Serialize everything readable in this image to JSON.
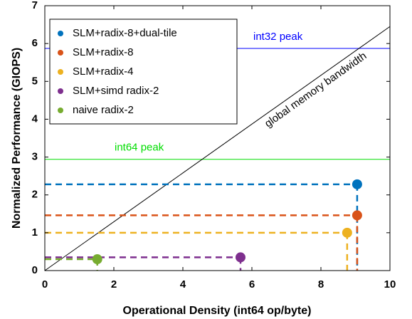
{
  "chart_data": {
    "type": "roofline",
    "x_label": "Operational Density (int64 op/byte)",
    "y_label": "Normalized Performance (GIOPS)",
    "xlim": [
      0,
      10
    ],
    "ylim": [
      0,
      7
    ],
    "xticks": [
      0,
      2,
      4,
      6,
      8,
      10
    ],
    "yticks": [
      0,
      1,
      2,
      3,
      4,
      5,
      6,
      7
    ],
    "legend": "upper left",
    "series": [
      {
        "name": "SLM+radix-8+dual-tile",
        "color": "#0072bd",
        "x": [
          9.05
        ],
        "values": [
          2.28
        ]
      },
      {
        "name": "SLM+radix-8",
        "color": "#d95319",
        "x": [
          9.05
        ],
        "values": [
          1.46
        ]
      },
      {
        "name": "SLM+radix-4",
        "color": "#edb120",
        "x": [
          8.76
        ],
        "values": [
          1.0
        ]
      },
      {
        "name": "SLM+simd radix-2",
        "color": "#7e2f8e",
        "x": [
          5.67
        ],
        "values": [
          0.35
        ]
      },
      {
        "name": "naive radix-2",
        "color": "#77ac30",
        "x": [
          1.52
        ],
        "values": [
          0.3
        ]
      }
    ],
    "peaks": [
      {
        "label": "int32 peak",
        "color": "#0000ff",
        "value": 5.87
      },
      {
        "label": "int64 peak",
        "color": "#00dd00",
        "value": 2.94
      }
    ],
    "bandwidth": {
      "label": "global memory bandwidth",
      "color": "#000000",
      "x": [
        0,
        10
      ],
      "values": [
        0,
        6.45
      ]
    }
  }
}
